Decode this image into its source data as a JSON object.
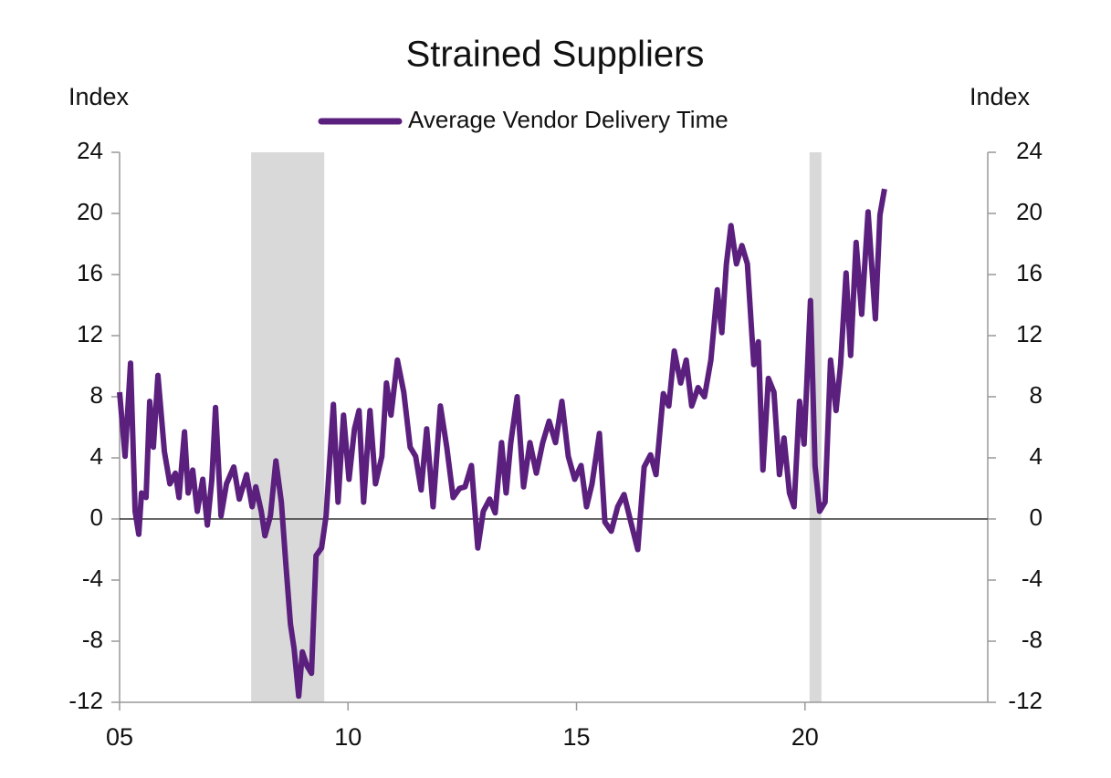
{
  "chart_data": {
    "type": "line",
    "title": "Strained Suppliers",
    "y_label": "Index",
    "y2_label": "Index",
    "xlim": [
      5,
      24
    ],
    "xticks": [
      {
        "value": 5,
        "label": "05"
      },
      10,
      15,
      20
    ],
    "ylim": [
      -12,
      24
    ],
    "yticks": [
      -12,
      -8,
      -4,
      0,
      4,
      8,
      12,
      16,
      20,
      24
    ],
    "y2lim": [
      -12,
      24
    ],
    "y2ticks": [
      -12,
      -8,
      -4,
      0,
      4,
      8,
      12,
      16,
      20,
      24
    ],
    "zero_line": 0,
    "shaded_periods": [
      [
        7.88,
        9.48
      ],
      [
        20.1,
        20.36
      ]
    ],
    "shade_color": "#d9d9d9",
    "legend": "top",
    "x": [
      5.0,
      5.12,
      5.24,
      5.34,
      5.42,
      5.48,
      5.58,
      5.66,
      5.74,
      5.84,
      5.98,
      6.1,
      6.22,
      6.3,
      6.42,
      6.5,
      6.6,
      6.7,
      6.82,
      6.92,
      7.02,
      7.1,
      7.22,
      7.34,
      7.5,
      7.62,
      7.78,
      7.9,
      7.98,
      8.1,
      8.18,
      8.3,
      8.42,
      8.54,
      8.64,
      8.74,
      8.82,
      8.92,
      9.0,
      9.1,
      9.2,
      9.3,
      9.42,
      9.52,
      9.68,
      9.78,
      9.9,
      10.02,
      10.14,
      10.24,
      10.34,
      10.48,
      10.6,
      10.74,
      10.84,
      10.94,
      11.08,
      11.22,
      11.36,
      11.48,
      11.6,
      11.72,
      11.86,
      12.02,
      12.16,
      12.3,
      12.44,
      12.56,
      12.7,
      12.84,
      12.96,
      13.1,
      13.22,
      13.36,
      13.46,
      13.56,
      13.7,
      13.84,
      13.98,
      14.12,
      14.26,
      14.4,
      14.54,
      14.68,
      14.82,
      14.96,
      15.1,
      15.22,
      15.34,
      15.5,
      15.62,
      15.76,
      15.9,
      16.04,
      16.18,
      16.34,
      16.48,
      16.62,
      16.74,
      16.9,
      17.02,
      17.14,
      17.28,
      17.4,
      17.52,
      17.66,
      17.8,
      17.94,
      18.08,
      18.18,
      18.28,
      18.38,
      18.5,
      18.62,
      18.74,
      18.88,
      18.98,
      19.08,
      19.2,
      19.32,
      19.44,
      19.54,
      19.66,
      19.76,
      19.88,
      19.98,
      20.12,
      20.22,
      20.32,
      20.44,
      20.56,
      20.68,
      20.78,
      20.9,
      21.0,
      21.12,
      21.24,
      21.38,
      21.54,
      21.64,
      21.74
    ],
    "series": [
      {
        "name": "Average Vendor Delivery Time",
        "color": "#5b1f7e",
        "values": [
          8.3,
          4.1,
          10.2,
          0.5,
          -1.0,
          1.7,
          1.4,
          7.7,
          4.7,
          9.4,
          4.4,
          2.3,
          3.0,
          1.4,
          5.7,
          1.7,
          3.2,
          0.5,
          2.6,
          -0.4,
          2.6,
          7.3,
          0.2,
          2.3,
          3.4,
          1.3,
          2.9,
          0.8,
          2.1,
          0.5,
          -1.1,
          0.2,
          3.8,
          1.1,
          -3.0,
          -6.9,
          -8.5,
          -11.6,
          -8.7,
          -9.6,
          -10.1,
          -2.4,
          -1.9,
          0.2,
          7.5,
          1.1,
          6.8,
          2.6,
          5.9,
          7.1,
          1.1,
          7.1,
          2.3,
          4.1,
          8.9,
          6.8,
          10.4,
          8.3,
          4.7,
          4.1,
          1.9,
          5.9,
          0.8,
          7.4,
          4.7,
          1.4,
          2.0,
          2.1,
          3.5,
          -1.9,
          0.5,
          1.3,
          0.4,
          5.0,
          1.7,
          5.0,
          8.0,
          2.1,
          5.0,
          3.0,
          5.0,
          6.4,
          5.0,
          7.7,
          4.1,
          2.6,
          3.5,
          0.8,
          2.3,
          5.6,
          -0.2,
          -0.8,
          0.8,
          1.6,
          -0.1,
          -2.0,
          3.4,
          4.2,
          2.9,
          8.2,
          7.4,
          11.0,
          8.9,
          10.4,
          7.4,
          8.6,
          8.0,
          10.4,
          15.0,
          12.2,
          16.7,
          19.2,
          16.7,
          17.9,
          16.7,
          10.1,
          11.6,
          3.2,
          9.2,
          8.3,
          2.9,
          5.3,
          1.7,
          0.8,
          7.7,
          4.9,
          14.3,
          3.5,
          0.5,
          1.1,
          10.4,
          7.1,
          10.1,
          16.1,
          10.7,
          18.1,
          13.4,
          20.1,
          13.1,
          19.9,
          21.6
        ]
      }
    ]
  }
}
